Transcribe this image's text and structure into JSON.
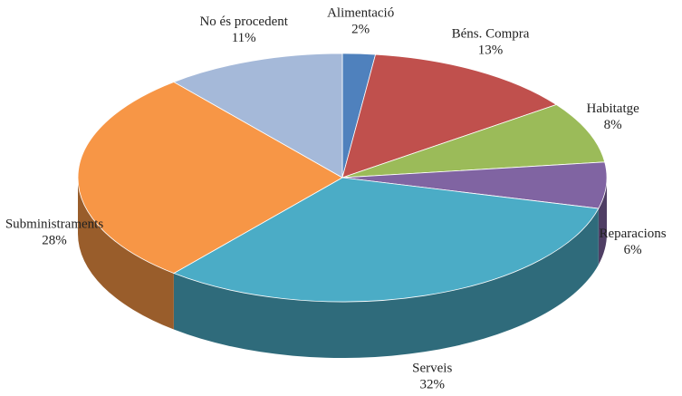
{
  "chart_data": {
    "type": "pie",
    "categories": [
      "Alimentació",
      "Béns. Compra",
      "Habitatge",
      "Reparacions",
      "Serveis",
      "Subministraments",
      "No és procedent"
    ],
    "values": [
      2,
      13,
      8,
      6,
      32,
      28,
      11
    ],
    "value_labels": [
      "2%",
      "13%",
      "8%",
      "6%",
      "32%",
      "28%",
      "11%"
    ],
    "colors": [
      "#4f81bd",
      "#c0504d",
      "#9bbb59",
      "#8064a2",
      "#4bacc6",
      "#f79646",
      "#a5b9d9"
    ]
  }
}
